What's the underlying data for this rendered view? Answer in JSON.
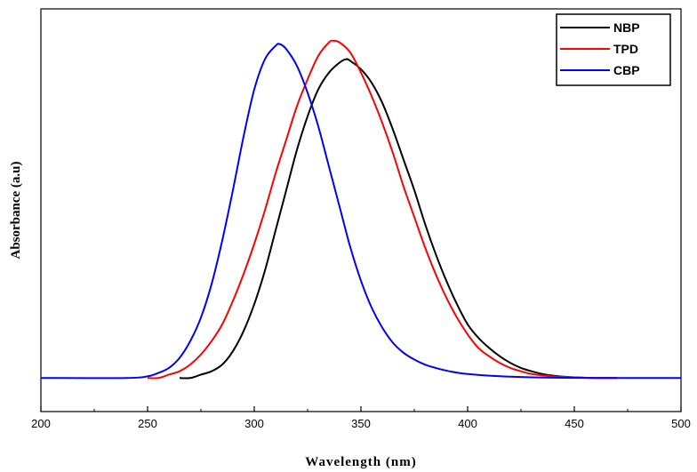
{
  "chart_data": {
    "type": "line",
    "xlabel": "Wavelength (nm)",
    "ylabel": "Absorbance (a.u)",
    "xlim": [
      200,
      500
    ],
    "ylim": [
      -0.1,
      1.1
    ],
    "x_ticks": [
      200,
      250,
      300,
      350,
      400,
      450,
      500
    ],
    "y_ticks_shown": false,
    "grid": false,
    "legend_position": "top-right",
    "series": [
      {
        "name": "NBP",
        "color": "#000000",
        "x": [
          265,
          270,
          275,
          280,
          285,
          290,
          295,
          300,
          305,
          310,
          315,
          320,
          325,
          330,
          335,
          340,
          343,
          345,
          350,
          355,
          360,
          365,
          370,
          375,
          380,
          385,
          390,
          395,
          400,
          405,
          410,
          415,
          420,
          425,
          430,
          435,
          440,
          445,
          450,
          460,
          470
        ],
        "y": [
          0.0,
          0.0,
          0.01,
          0.02,
          0.04,
          0.08,
          0.14,
          0.22,
          0.32,
          0.44,
          0.56,
          0.68,
          0.78,
          0.86,
          0.91,
          0.94,
          0.95,
          0.945,
          0.92,
          0.88,
          0.82,
          0.74,
          0.65,
          0.56,
          0.46,
          0.37,
          0.29,
          0.22,
          0.16,
          0.12,
          0.09,
          0.065,
          0.045,
          0.03,
          0.02,
          0.012,
          0.007,
          0.004,
          0.002,
          0.0,
          0.0
        ]
      },
      {
        "name": "TPD",
        "color": "#ff0000",
        "x": [
          250,
          255,
          260,
          265,
          270,
          275,
          280,
          285,
          290,
          295,
          300,
          305,
          310,
          315,
          320,
          325,
          330,
          335,
          337,
          340,
          345,
          350,
          355,
          360,
          365,
          370,
          375,
          380,
          385,
          390,
          395,
          400,
          405,
          410,
          415,
          420,
          425,
          430,
          440,
          450,
          460,
          470
        ],
        "y": [
          0.0,
          0.0,
          0.01,
          0.02,
          0.04,
          0.07,
          0.11,
          0.16,
          0.23,
          0.31,
          0.4,
          0.5,
          0.61,
          0.71,
          0.81,
          0.89,
          0.96,
          1.0,
          1.005,
          1.0,
          0.97,
          0.91,
          0.84,
          0.76,
          0.67,
          0.57,
          0.48,
          0.39,
          0.31,
          0.24,
          0.18,
          0.13,
          0.09,
          0.065,
          0.045,
          0.03,
          0.02,
          0.012,
          0.005,
          0.002,
          0.0,
          0.0
        ]
      },
      {
        "name": "CBP",
        "color": "#0000ff",
        "x": [
          200,
          240,
          250,
          255,
          260,
          265,
          270,
          275,
          280,
          285,
          290,
          295,
          300,
          305,
          310,
          312,
          315,
          320,
          325,
          330,
          335,
          340,
          345,
          350,
          355,
          360,
          365,
          370,
          375,
          380,
          385,
          390,
          395,
          400,
          410,
          420,
          430,
          440,
          460,
          480,
          500
        ],
        "y": [
          0.0,
          0.0,
          0.005,
          0.015,
          0.03,
          0.06,
          0.11,
          0.18,
          0.28,
          0.41,
          0.56,
          0.72,
          0.86,
          0.95,
          0.99,
          0.995,
          0.98,
          0.93,
          0.85,
          0.75,
          0.63,
          0.51,
          0.39,
          0.29,
          0.21,
          0.15,
          0.105,
          0.075,
          0.055,
          0.04,
          0.03,
          0.022,
          0.016,
          0.012,
          0.007,
          0.004,
          0.002,
          0.001,
          0.0,
          0.0,
          0.0
        ]
      }
    ]
  }
}
